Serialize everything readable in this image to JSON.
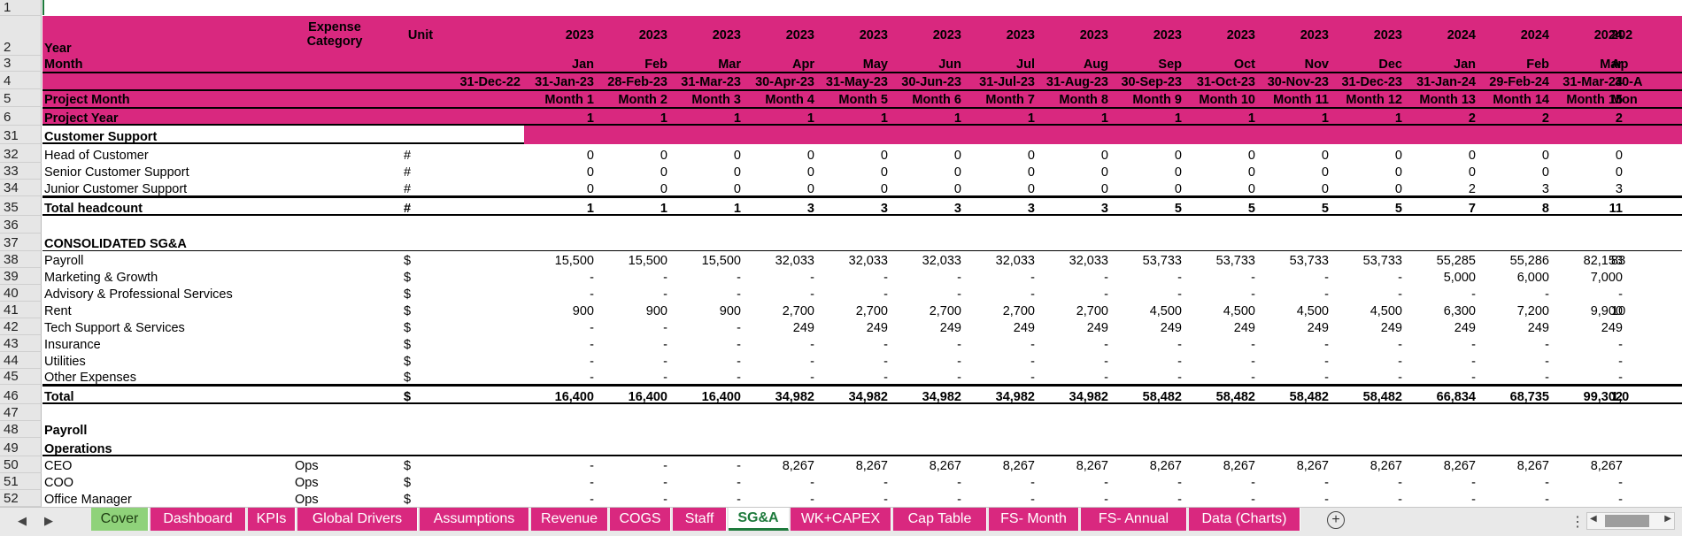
{
  "header": {
    "years": [
      "",
      "2023",
      "2023",
      "2023",
      "2023",
      "2023",
      "2023",
      "2023",
      "2023",
      "2023",
      "2023",
      "2023",
      "2023",
      "2024",
      "2024",
      "2024",
      "202"
    ],
    "months": [
      "",
      "Jan",
      "Feb",
      "Mar",
      "Apr",
      "May",
      "Jun",
      "Jul",
      "Aug",
      "Sep",
      "Oct",
      "Nov",
      "Dec",
      "Jan",
      "Feb",
      "Mar",
      "Ap"
    ],
    "dates": [
      "31-Dec-22",
      "31-Jan-23",
      "28-Feb-23",
      "31-Mar-23",
      "30-Apr-23",
      "31-May-23",
      "30-Jun-23",
      "31-Jul-23",
      "31-Aug-23",
      "30-Sep-23",
      "31-Oct-23",
      "30-Nov-23",
      "31-Dec-23",
      "31-Jan-24",
      "29-Feb-24",
      "31-Mar-24",
      "30-A"
    ],
    "project_months": [
      "",
      "Month 1",
      "Month 2",
      "Month 3",
      "Month 4",
      "Month 5",
      "Month 6",
      "Month 7",
      "Month 8",
      "Month 9",
      "Month 10",
      "Month 11",
      "Month 12",
      "Month 13",
      "Month 14",
      "Month 15",
      "Mon"
    ],
    "project_years": [
      "",
      "1",
      "1",
      "1",
      "1",
      "1",
      "1",
      "1",
      "1",
      "1",
      "1",
      "1",
      "1",
      "2",
      "2",
      "2",
      ""
    ],
    "label_year": "Year",
    "label_month": "Month",
    "label_expense_category_1": "Expense",
    "label_expense_category_2": "Category",
    "label_unit": "Unit",
    "label_project_month": "Project Month",
    "label_project_year": "Project Year"
  },
  "row_numbers": {
    "r1": "1",
    "r2": "2",
    "r3": "3",
    "r4": "4",
    "r5": "5",
    "r6": "6",
    "r31": "31",
    "r32": "32",
    "r33": "33",
    "r34": "34",
    "r35": "35",
    "r36": "36",
    "r37": "37",
    "r38": "38",
    "r39": "39",
    "r40": "40",
    "r41": "41",
    "r42": "42",
    "r43": "43",
    "r44": "44",
    "r45": "45",
    "r46": "46",
    "r47": "47",
    "r48": "48",
    "r49": "49",
    "r50": "50",
    "r51": "51",
    "r52": "52"
  },
  "sections": {
    "customer_support": "Customer Support",
    "consolidated": "CONSOLIDATED SG&A",
    "payroll": "Payroll",
    "operations": "Operations"
  },
  "rows": {
    "head_customer": {
      "label": "Head of Customer",
      "unit": "#",
      "values": [
        "",
        "0",
        "0",
        "0",
        "0",
        "0",
        "0",
        "0",
        "0",
        "0",
        "0",
        "0",
        "0",
        "0",
        "0",
        "0",
        ""
      ]
    },
    "senior_support": {
      "label": "Senior Customer Support",
      "unit": "#",
      "values": [
        "",
        "0",
        "0",
        "0",
        "0",
        "0",
        "0",
        "0",
        "0",
        "0",
        "0",
        "0",
        "0",
        "0",
        "0",
        "0",
        ""
      ]
    },
    "junior_support": {
      "label": "Junior Customer Support",
      "unit": "#",
      "values": [
        "",
        "0",
        "0",
        "0",
        "0",
        "0",
        "0",
        "0",
        "0",
        "0",
        "0",
        "0",
        "0",
        "2",
        "3",
        "3",
        ""
      ]
    },
    "total_headcount": {
      "label": "Total headcount",
      "unit": "#",
      "values": [
        "",
        "1",
        "1",
        "1",
        "3",
        "3",
        "3",
        "3",
        "3",
        "5",
        "5",
        "5",
        "5",
        "7",
        "8",
        "11",
        ""
      ]
    },
    "payroll": {
      "label": "Payroll",
      "unit": "$",
      "values": [
        "",
        "15,500",
        "15,500",
        "15,500",
        "32,033",
        "32,033",
        "32,033",
        "32,033",
        "32,033",
        "53,733",
        "53,733",
        "53,733",
        "53,733",
        "55,285",
        "55,286",
        "82,153",
        "83"
      ]
    },
    "marketing": {
      "label": "Marketing & Growth",
      "unit": "$",
      "values": [
        "",
        "-",
        "-",
        "-",
        "-",
        "-",
        "-",
        "-",
        "-",
        "-",
        "-",
        "-",
        "-",
        "5,000",
        "6,000",
        "7,000",
        ""
      ]
    },
    "advisory": {
      "label": "Advisory & Professional Services",
      "unit": "$",
      "values": [
        "",
        "-",
        "-",
        "-",
        "-",
        "-",
        "-",
        "-",
        "-",
        "-",
        "-",
        "-",
        "-",
        "-",
        "-",
        "-",
        ""
      ]
    },
    "rent": {
      "label": "Rent",
      "unit": "$",
      "values": [
        "",
        "900",
        "900",
        "900",
        "2,700",
        "2,700",
        "2,700",
        "2,700",
        "2,700",
        "4,500",
        "4,500",
        "4,500",
        "4,500",
        "6,300",
        "7,200",
        "9,900",
        "10"
      ]
    },
    "tech": {
      "label": "Tech Support & Services",
      "unit": "$",
      "values": [
        "",
        "-",
        "-",
        "-",
        "249",
        "249",
        "249",
        "249",
        "249",
        "249",
        "249",
        "249",
        "249",
        "249",
        "249",
        "249",
        ""
      ]
    },
    "insurance": {
      "label": "Insurance",
      "unit": "$",
      "values": [
        "",
        "-",
        "-",
        "-",
        "-",
        "-",
        "-",
        "-",
        "-",
        "-",
        "-",
        "-",
        "-",
        "-",
        "-",
        "-",
        ""
      ]
    },
    "utilities": {
      "label": "Utilities",
      "unit": "$",
      "values": [
        "",
        "-",
        "-",
        "-",
        "-",
        "-",
        "-",
        "-",
        "-",
        "-",
        "-",
        "-",
        "-",
        "-",
        "-",
        "-",
        ""
      ]
    },
    "other": {
      "label": "Other Expenses",
      "unit": "$",
      "values": [
        "",
        "-",
        "-",
        "-",
        "-",
        "-",
        "-",
        "-",
        "-",
        "-",
        "-",
        "-",
        "-",
        "-",
        "-",
        "-",
        ""
      ]
    },
    "total": {
      "label": "Total",
      "unit": "$",
      "values": [
        "",
        "16,400",
        "16,400",
        "16,400",
        "34,982",
        "34,982",
        "34,982",
        "34,982",
        "34,982",
        "58,482",
        "58,482",
        "58,482",
        "58,482",
        "66,834",
        "68,735",
        "99,302",
        "1,0"
      ]
    },
    "ceo": {
      "label": "CEO",
      "category": "Ops",
      "unit": "$",
      "values": [
        "",
        "-",
        "-",
        "-",
        "8,267",
        "8,267",
        "8,267",
        "8,267",
        "8,267",
        "8,267",
        "8,267",
        "8,267",
        "8,267",
        "8,267",
        "8,267",
        "8,267",
        ""
      ]
    },
    "coo": {
      "label": "COO",
      "category": "Ops",
      "unit": "$",
      "values": [
        "",
        "-",
        "-",
        "-",
        "-",
        "-",
        "-",
        "-",
        "-",
        "-",
        "-",
        "-",
        "-",
        "-",
        "-",
        "-",
        ""
      ]
    },
    "office_manager": {
      "label": "Office Manager",
      "category": "Ops",
      "unit": "$",
      "values": [
        "",
        "-",
        "-",
        "-",
        "-",
        "-",
        "-",
        "-",
        "-",
        "-",
        "-",
        "-",
        "-",
        "-",
        "-",
        "-",
        ""
      ]
    }
  },
  "tabs": [
    "Cover",
    "Dashboard",
    "KPIs",
    "Global Drivers",
    "Assumptions",
    "Revenue",
    "COGS",
    "Staff",
    "SG&A",
    "WK+CAPEX",
    "Cap Table",
    "FS- Month",
    "FS- Annual",
    "Data (Charts)"
  ],
  "active_tab": "SG&A",
  "tabbar": {
    "add_sheet": "+",
    "more": "⋮",
    "prev": "◀",
    "next": "▶"
  },
  "colors": {
    "header_band": "#d9287f",
    "cover_tab": "#8fd27a",
    "active_tab_text": "#1e7a3c"
  }
}
